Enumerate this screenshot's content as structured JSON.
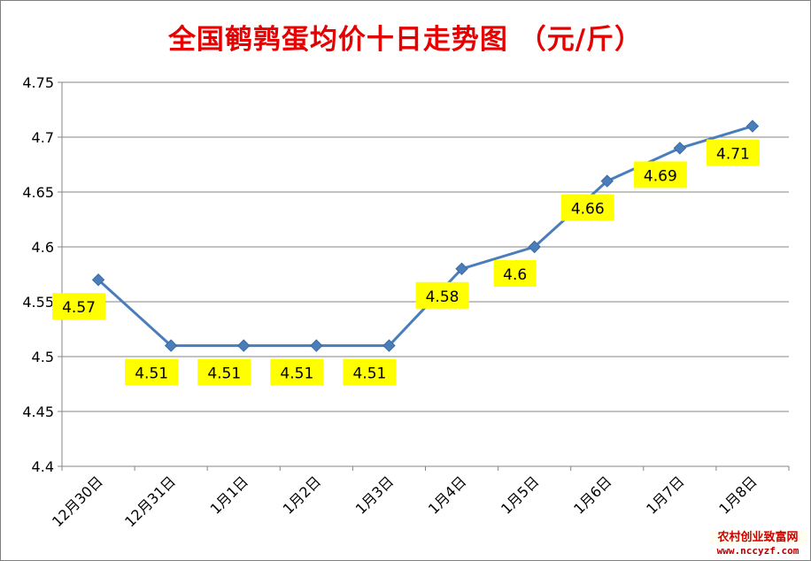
{
  "title": "全国鹌鹑蛋均价十日走势图 （元/斤）",
  "watermark": {
    "name": "农村创业致富网",
    "url": "www.nccyzf.com"
  },
  "colors": {
    "title": "#e60000",
    "line": "#4a7ebb",
    "marker": "#4a7ebb",
    "label_bg": "#ffff00",
    "grid": "#868686"
  },
  "chart_data": {
    "type": "line",
    "title": "全国鹌鹑蛋均价十日走势图 （元/斤）",
    "xlabel": "",
    "ylabel": "",
    "categories": [
      "12月30日",
      "12月31日",
      "1月1日",
      "1月2日",
      "1月3日",
      "1月4日",
      "1月5日",
      "1月6日",
      "1月7日",
      "1月8日"
    ],
    "series": [
      {
        "values": [
          4.57,
          4.51,
          4.51,
          4.51,
          4.51,
          4.58,
          4.6,
          4.66,
          4.69,
          4.71
        ],
        "labels": [
          "4.57",
          "4.51",
          "4.51",
          "4.51",
          "4.51",
          "4.58",
          "4.6",
          "4.66",
          "4.69",
          "4.71"
        ]
      }
    ],
    "ylim": [
      4.4,
      4.75
    ],
    "yticks": [
      "4.4",
      "4.45",
      "4.5",
      "4.55",
      "4.6",
      "4.65",
      "4.7",
      "4.75"
    ],
    "grid": true,
    "legend": "none",
    "marker": "diamond",
    "data_labels": "below"
  }
}
